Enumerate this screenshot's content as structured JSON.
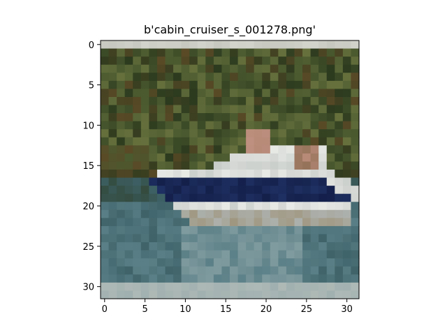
{
  "chart_data": {
    "type": "heatmap",
    "title": "b'cabin_cruiser_s_001278.png'",
    "xlabel": "",
    "ylabel": "",
    "xlim": [
      -0.5,
      31.5
    ],
    "ylim": [
      31.5,
      -0.5
    ],
    "x_ticks": [
      0,
      5,
      10,
      15,
      20,
      25,
      30
    ],
    "y_ticks": [
      0,
      5,
      10,
      15,
      20,
      25,
      30
    ],
    "x_tick_labels": [
      "0",
      "5",
      "10",
      "15",
      "20",
      "25",
      "30"
    ],
    "y_tick_labels": [
      "0",
      "5",
      "10",
      "15",
      "20",
      "25",
      "30"
    ],
    "grid": false,
    "image_size": [
      32,
      32
    ],
    "palette": {
      "top_band": "#c7c9c0",
      "foliage_dark": "#2c3a1e",
      "foliage_mid": "#4b5a2f",
      "foliage_light": "#66703d",
      "foliage_brown": "#5a4a26",
      "hull_white": "#e8eae6",
      "hull_grey": "#aeb4b2",
      "hull_navy": "#14204a",
      "hull_blue": "#22356a",
      "hull_tan": "#9a8a6a",
      "person_skin": "#b78a78",
      "water_dark": "#3e6268",
      "water_mid": "#5a7f86",
      "water_light": "#8aa3a6",
      "bottom_band": "#aeb9b6"
    }
  }
}
